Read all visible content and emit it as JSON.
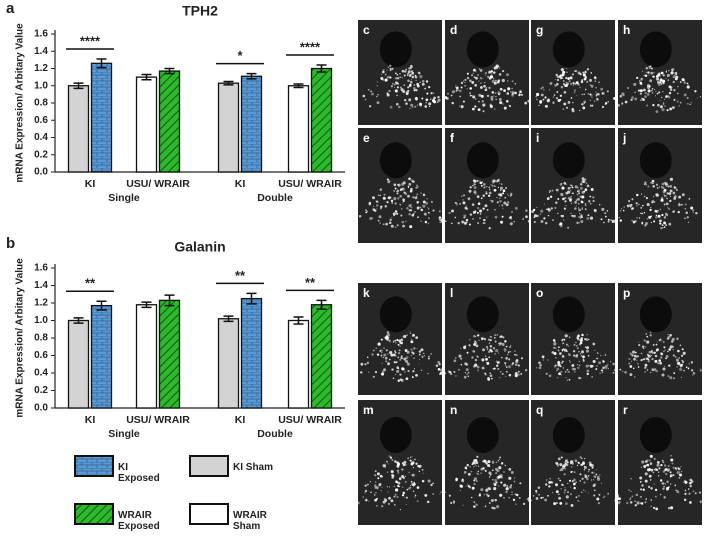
{
  "panel_labels": [
    "a",
    "b"
  ],
  "chart_data": [
    {
      "type": "bar",
      "title": "TPH2",
      "ylabel": "mRNA Expression/ Arbitary Value",
      "categories": [
        "KI",
        "USU/ WRAIR",
        "KI",
        "USU/ WRAIR"
      ],
      "groups": [
        "Single",
        "Double"
      ],
      "significance": [
        "****",
        null,
        "*",
        "****"
      ],
      "series": [
        {
          "name": "KI Sham",
          "color": "#d3d3d3",
          "hatch": "none",
          "values": [
            1.0,
            null,
            1.03,
            null
          ],
          "errors": [
            0.03,
            null,
            0.02,
            null
          ]
        },
        {
          "name": "KI Exposed",
          "color": "#5b9bd5",
          "hatch": "brick",
          "values": [
            1.26,
            null,
            1.11,
            null
          ],
          "errors": [
            0.05,
            null,
            0.03,
            null
          ]
        },
        {
          "name": "WRAIR Sham",
          "color": "#ffffff",
          "hatch": "none",
          "values": [
            null,
            1.1,
            null,
            1.0
          ],
          "errors": [
            null,
            0.03,
            null,
            0.02
          ]
        },
        {
          "name": "WRAIR Exposed",
          "color": "#2db82d",
          "hatch": "diagonal",
          "values": [
            null,
            1.17,
            null,
            1.2
          ],
          "errors": [
            null,
            0.03,
            null,
            0.04
          ]
        }
      ],
      "ylim": [
        0,
        1.6
      ],
      "yticks": [
        {
          "value": 0,
          "label": "0.0"
        },
        0.2,
        0.4,
        0.6,
        0.8,
        {
          "value": 1,
          "label": "1.0"
        },
        1.2,
        1.4,
        1.6
      ]
    },
    {
      "type": "bar",
      "title": "Galanin",
      "ylabel": "mRNA Expression/ Arbitary Value",
      "categories": [
        "KI",
        "USU/ WRAIR",
        "KI",
        "USU/ WRAIR"
      ],
      "groups": [
        "Single",
        "Double"
      ],
      "significance": [
        "**",
        null,
        "**",
        "**"
      ],
      "series": [
        {
          "name": "KI Sham",
          "color": "#d3d3d3",
          "hatch": "none",
          "values": [
            1.0,
            null,
            1.02,
            null
          ],
          "errors": [
            0.03,
            null,
            0.03,
            null
          ]
        },
        {
          "name": "KI Exposed",
          "color": "#5b9bd5",
          "hatch": "brick",
          "values": [
            1.17,
            null,
            1.25,
            null
          ],
          "errors": [
            0.05,
            null,
            0.06,
            null
          ]
        },
        {
          "name": "WRAIR Sham",
          "color": "#ffffff",
          "hatch": "none",
          "values": [
            null,
            1.18,
            null,
            1.0
          ],
          "errors": [
            null,
            0.03,
            null,
            0.04
          ]
        },
        {
          "name": "WRAIR Exposed",
          "color": "#2db82d",
          "hatch": "diagonal",
          "values": [
            null,
            1.23,
            null,
            1.18
          ],
          "errors": [
            null,
            0.06,
            null,
            0.05
          ]
        }
      ],
      "ylim": [
        0,
        1.6
      ],
      "yticks": [
        {
          "value": 0,
          "label": "0.0"
        },
        0.2,
        0.4,
        0.6,
        0.8,
        {
          "value": 1,
          "label": "1.0"
        },
        1.2,
        1.4,
        1.6
      ]
    }
  ],
  "image_panels": [
    [
      "c",
      "d",
      "g",
      "h"
    ],
    [
      "e",
      "f",
      "i",
      "j"
    ],
    [
      "k",
      "l",
      "o",
      "p"
    ],
    [
      "m",
      "n",
      "q",
      "r"
    ]
  ]
}
